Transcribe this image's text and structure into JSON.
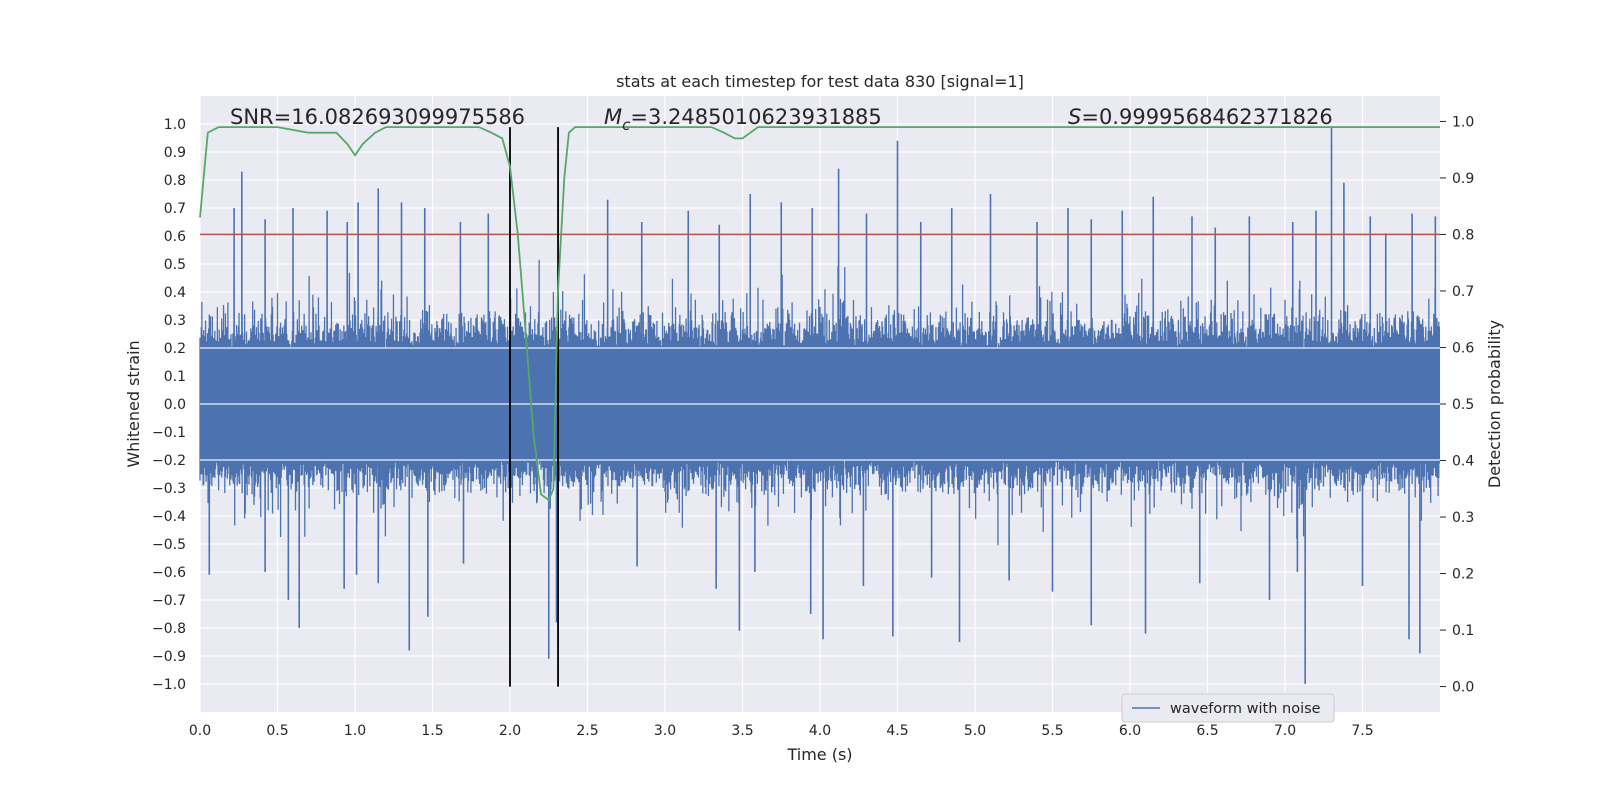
{
  "chart_data": {
    "type": "line",
    "title": "stats at each timestep for test data 830 [signal=1]",
    "xlabel": "Time (s)",
    "ylabel": "Whitened strain",
    "y2label": "Detection probability",
    "xlim": [
      0.0,
      8.0
    ],
    "ylim": [
      -1.1,
      1.1
    ],
    "y2lim": [
      -0.045,
      1.045
    ],
    "xticks": [
      "0.0",
      "0.5",
      "1.0",
      "1.5",
      "2.0",
      "2.5",
      "3.0",
      "3.5",
      "4.0",
      "4.5",
      "5.0",
      "5.5",
      "6.0",
      "6.5",
      "7.0",
      "7.5"
    ],
    "yticks": [
      "1.0",
      "0.9",
      "0.8",
      "0.7",
      "0.6",
      "0.5",
      "0.4",
      "0.3",
      "0.2",
      "0.1",
      "0.0",
      "−0.1",
      "−0.2",
      "−0.3",
      "−0.4",
      "−0.5",
      "−0.6",
      "−0.7",
      "−0.8",
      "−0.9",
      "−1.0"
    ],
    "y2ticks": [
      "1.0",
      "0.9",
      "0.8",
      "0.7",
      "0.6",
      "0.5",
      "0.4",
      "0.3",
      "0.2",
      "0.1",
      "0.0"
    ],
    "grid": true,
    "legend": {
      "entries": [
        "waveform with noise"
      ],
      "position": "lower-right"
    },
    "annotations": {
      "snr_label": "SNR=16.082693099975586",
      "mc_symbol": "M",
      "mc_sub": "c",
      "mc_value": "=3.2485010623931885",
      "s_symbol": "S",
      "s_value": "=0.9999568462371826"
    },
    "threshold": {
      "y2": 0.8,
      "color": "#c44e52"
    },
    "event_lines": {
      "x": [
        2.0,
        2.31
      ],
      "y2_range": [
        0.0,
        0.99
      ],
      "color": "#000000"
    },
    "waveform": {
      "name": "waveform with noise",
      "color": "#4c72b0",
      "dense_band": [
        -0.2,
        0.2
      ],
      "spikes_up": [
        [
          0.27,
          0.83
        ],
        [
          0.22,
          0.7
        ],
        [
          0.42,
          0.66
        ],
        [
          0.6,
          0.7
        ],
        [
          0.82,
          0.69
        ],
        [
          0.95,
          0.65
        ],
        [
          1.02,
          0.72
        ],
        [
          1.15,
          0.77
        ],
        [
          1.3,
          0.72
        ],
        [
          1.45,
          0.7
        ],
        [
          1.68,
          0.65
        ],
        [
          1.86,
          0.68
        ],
        [
          2.63,
          0.73
        ],
        [
          2.85,
          0.65
        ],
        [
          3.15,
          0.69
        ],
        [
          3.35,
          0.64
        ],
        [
          3.55,
          0.75
        ],
        [
          3.75,
          0.72
        ],
        [
          3.95,
          0.7
        ],
        [
          4.12,
          0.84
        ],
        [
          4.3,
          0.68
        ],
        [
          4.5,
          0.94
        ],
        [
          4.65,
          0.65
        ],
        [
          4.85,
          0.7
        ],
        [
          5.1,
          0.75
        ],
        [
          5.4,
          0.65
        ],
        [
          5.6,
          0.7
        ],
        [
          5.75,
          0.66
        ],
        [
          5.95,
          0.69
        ],
        [
          6.15,
          0.74
        ],
        [
          6.4,
          0.67
        ],
        [
          6.55,
          0.63
        ],
        [
          6.77,
          0.67
        ],
        [
          7.05,
          0.65
        ],
        [
          7.2,
          0.69
        ],
        [
          7.3,
          0.99
        ],
        [
          7.38,
          0.79
        ],
        [
          7.55,
          0.67
        ],
        [
          7.65,
          0.61
        ],
        [
          7.82,
          0.68
        ],
        [
          7.97,
          0.67
        ]
      ],
      "spikes_down": [
        [
          0.06,
          -0.61
        ],
        [
          0.42,
          -0.6
        ],
        [
          0.57,
          -0.7
        ],
        [
          0.64,
          -0.8
        ],
        [
          0.93,
          -0.66
        ],
        [
          1.01,
          -0.61
        ],
        [
          1.15,
          -0.64
        ],
        [
          1.35,
          -0.88
        ],
        [
          1.47,
          -0.76
        ],
        [
          1.7,
          -0.57
        ],
        [
          2.25,
          -0.91
        ],
        [
          2.3,
          -0.78
        ],
        [
          2.82,
          -0.58
        ],
        [
          3.33,
          -0.66
        ],
        [
          3.48,
          -0.81
        ],
        [
          3.58,
          -0.6
        ],
        [
          3.94,
          -0.75
        ],
        [
          4.02,
          -0.84
        ],
        [
          4.28,
          -0.65
        ],
        [
          4.47,
          -0.83
        ],
        [
          4.72,
          -0.62
        ],
        [
          4.9,
          -0.85
        ],
        [
          5.22,
          -0.63
        ],
        [
          5.5,
          -0.67
        ],
        [
          5.75,
          -0.79
        ],
        [
          6.1,
          -0.82
        ],
        [
          6.45,
          -0.64
        ],
        [
          6.9,
          -0.7
        ],
        [
          7.08,
          -0.6
        ],
        [
          7.13,
          -1.0
        ],
        [
          7.5,
          -0.65
        ],
        [
          7.8,
          -0.84
        ],
        [
          7.87,
          -0.89
        ]
      ]
    },
    "detection_probability": {
      "color": "#55a868",
      "x": [
        0.0,
        0.05,
        0.12,
        0.2,
        0.5,
        0.7,
        0.78,
        0.88,
        0.95,
        1.0,
        1.05,
        1.13,
        1.2,
        1.5,
        1.8,
        1.88,
        1.95,
        2.0,
        2.05,
        2.1,
        2.15,
        2.2,
        2.25,
        2.28,
        2.31,
        2.35,
        2.38,
        2.42,
        2.5,
        2.8,
        3.1,
        3.3,
        3.38,
        3.45,
        3.5,
        3.55,
        3.6,
        4.0,
        5.0,
        6.0,
        7.0,
        8.0
      ],
      "y": [
        0.83,
        0.98,
        0.99,
        0.99,
        0.99,
        0.98,
        0.98,
        0.98,
        0.96,
        0.94,
        0.96,
        0.98,
        0.99,
        0.99,
        0.99,
        0.98,
        0.97,
        0.92,
        0.8,
        0.63,
        0.45,
        0.34,
        0.33,
        0.35,
        0.7,
        0.9,
        0.98,
        0.99,
        0.99,
        0.99,
        0.99,
        0.99,
        0.98,
        0.97,
        0.97,
        0.98,
        0.99,
        0.99,
        0.99,
        0.99,
        0.99,
        0.99
      ]
    }
  }
}
